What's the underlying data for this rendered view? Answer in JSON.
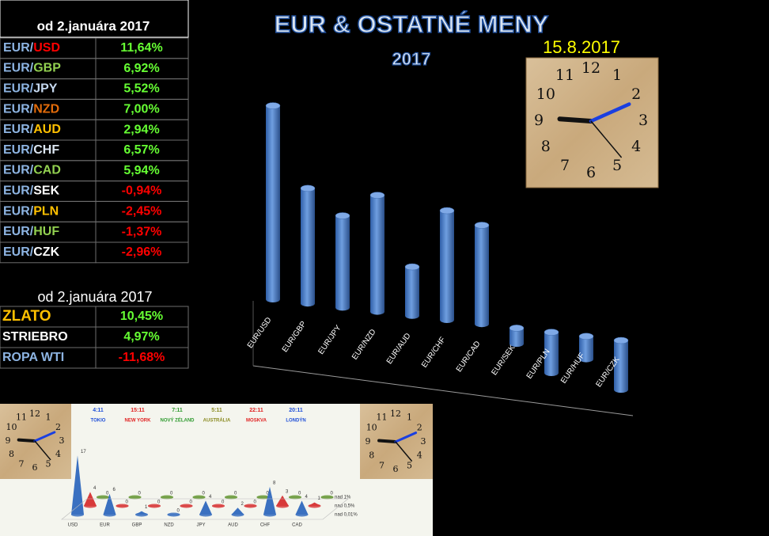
{
  "table": {
    "header": "od 2.januára 2017",
    "rows": [
      {
        "base": "EUR/",
        "code": "USD",
        "code_color": "#ff0000",
        "value": "11,64%",
        "value_color": "#66ff33"
      },
      {
        "base": "EUR/",
        "code": "GBP",
        "code_color": "#92d050",
        "value": "6,92%",
        "value_color": "#66ff33"
      },
      {
        "base": "EUR/",
        "code": "JPY",
        "code_color": "#c6d9f0",
        "value": "5,52%",
        "value_color": "#66ff33"
      },
      {
        "base": "EUR/",
        "code": "NZD",
        "code_color": "#e26b0a",
        "value": "7,00%",
        "value_color": "#66ff33"
      },
      {
        "base": "EUR/",
        "code": "AUD",
        "code_color": "#ffc000",
        "value": "2,94%",
        "value_color": "#66ff33"
      },
      {
        "base": "EUR/",
        "code": "CHF",
        "code_color": "#dce6f1",
        "value": "6,57%",
        "value_color": "#66ff33"
      },
      {
        "base": "EUR/",
        "code": "CAD",
        "code_color": "#92d050",
        "value": "5,94%",
        "value_color": "#66ff33"
      },
      {
        "base": "EUR/",
        "code": "SEK",
        "code_color": "#ffffff",
        "value": "-0,94%",
        "value_color": "#ff0000"
      },
      {
        "base": "EUR/",
        "code": "PLN",
        "code_color": "#ffc000",
        "value": "-2,45%",
        "value_color": "#ff0000"
      },
      {
        "base": "EUR/",
        "code": "HUF",
        "code_color": "#92d050",
        "value": "-1,37%",
        "value_color": "#ff0000"
      },
      {
        "base": "EUR/",
        "code": "CZK",
        "code_color": "#ffffff",
        "value": "-2,96%",
        "value_color": "#ff0000"
      }
    ]
  },
  "commodities": {
    "header": "od 2.januára 2017",
    "rows": [
      {
        "name": "ZLATO",
        "name_color": "#ffc000",
        "value": "10,45%",
        "value_color": "#66ff33"
      },
      {
        "name": "STRIEBRO",
        "name_color": "#ffffff",
        "value": "4,97%",
        "value_color": "#66ff33"
      },
      {
        "name": "ROPA WTI",
        "name_color": "#8db4e2",
        "value": "-11,68%",
        "value_color": "#ff0000"
      }
    ]
  },
  "date": "15.8.2017",
  "clock_numbers": [
    "12",
    "1",
    "2",
    "3",
    "4",
    "5",
    "6",
    "7",
    "8",
    "9",
    "10",
    "11"
  ],
  "world_clock": [
    {
      "time": "4:11",
      "city": "TOKIO",
      "color": "#1f4fd8"
    },
    {
      "time": "15:11",
      "city": "NEW YORK",
      "color": "#e02020"
    },
    {
      "time": "7:11",
      "city": "NOVÝ ZÉLAND",
      "color": "#2e9a2e"
    },
    {
      "time": "5:11",
      "city": "AUSTRÁLIA",
      "color": "#8a8a20"
    },
    {
      "time": "22:11",
      "city": "MOSKVA",
      "color": "#e02020"
    },
    {
      "time": "20:11",
      "city": "LONDÝN",
      "color": "#1f4fd8"
    }
  ],
  "chart_data": [
    {
      "type": "bar",
      "title": "EUR & OSTATNÉ MENY",
      "subtitle": "2017",
      "categories": [
        "EUR/USD",
        "EUR/GBP",
        "EUR/JPY",
        "EUR/NZD",
        "EUR/AUD",
        "EUR/CHF",
        "EUR/CAD",
        "EUR/SEK",
        "EUR/PLN",
        "EUR/HUF",
        "EUR/CZK"
      ],
      "values": [
        11.64,
        6.92,
        5.52,
        7.0,
        2.94,
        6.57,
        5.94,
        -0.94,
        -2.45,
        -1.37,
        -2.96
      ],
      "color": "#4a7ec8",
      "ylim": [
        -4,
        13
      ]
    },
    {
      "type": "cone",
      "categories": [
        "USD",
        "EUR",
        "GBP",
        "NZD",
        "JPY",
        "AUD",
        "CHF",
        "CAD"
      ],
      "series": [
        {
          "name": "nad 0,01%",
          "color": "#3a70c0",
          "values": [
            17,
            6,
            1,
            0,
            4,
            2,
            8,
            4
          ]
        },
        {
          "name": "nad 0,5%",
          "color": "#d83a3a",
          "values": [
            4,
            0,
            0,
            0,
            0,
            0,
            3,
            1
          ]
        },
        {
          "name": "nad 1%",
          "color": "#6a9a3a",
          "values": [
            0,
            0,
            0,
            0,
            0,
            0,
            0,
            0
          ]
        }
      ]
    }
  ]
}
